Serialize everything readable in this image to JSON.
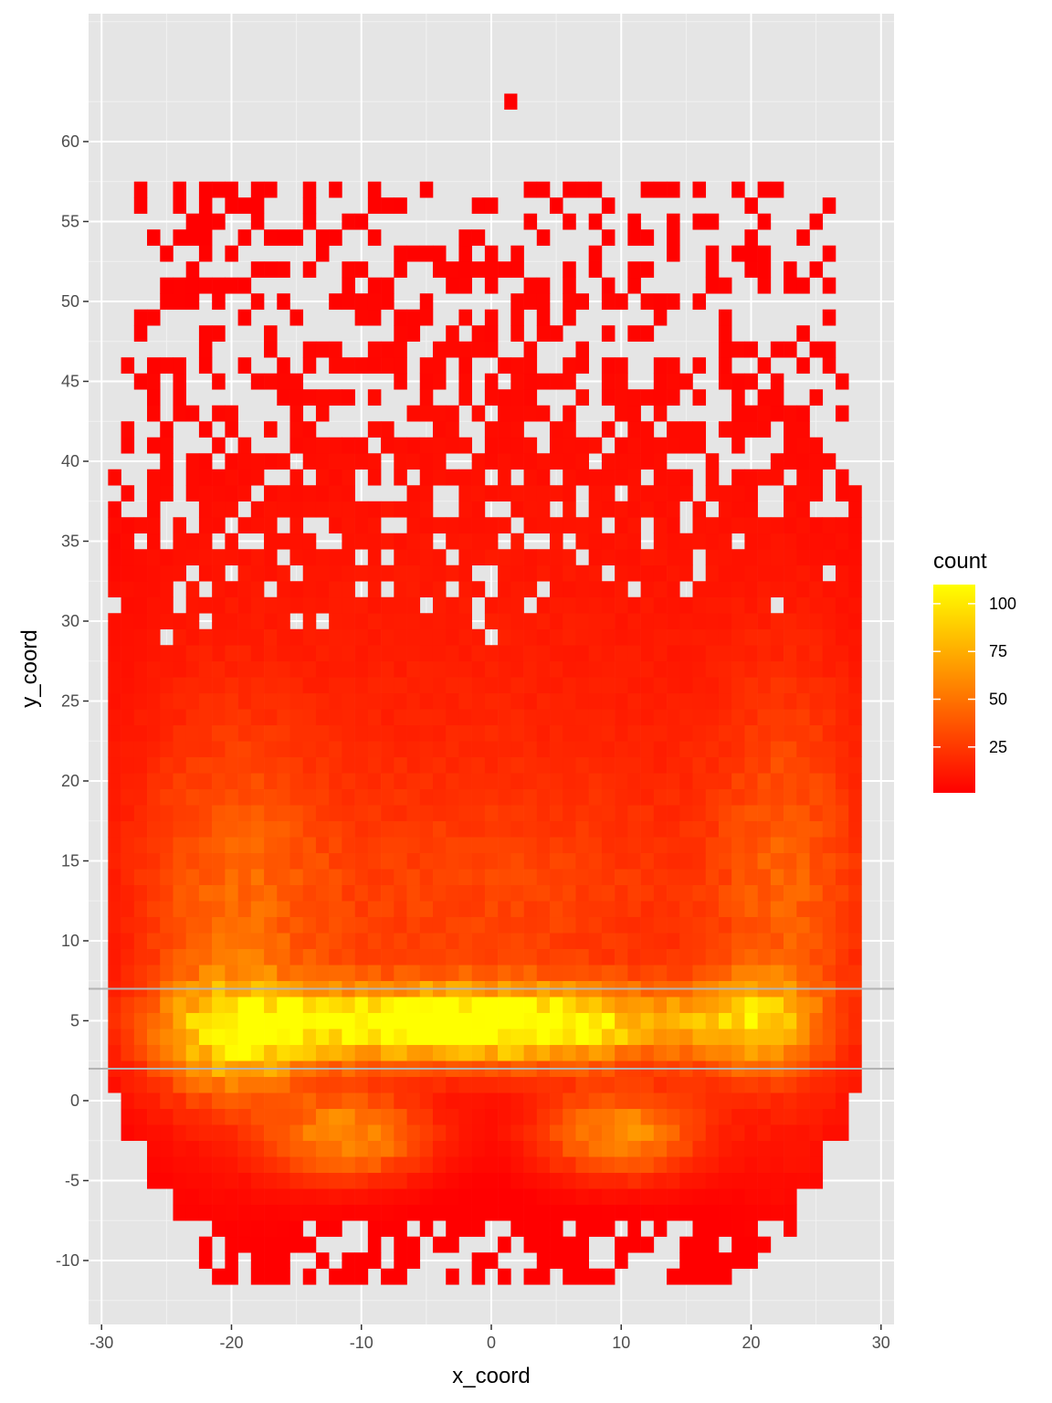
{
  "chart_data": {
    "type": "heatmap",
    "title": "",
    "xlabel": "x_coord",
    "ylabel": "y_coord",
    "xlim": [
      -31,
      31
    ],
    "ylim": [
      -14,
      68
    ],
    "x_ticks": [
      -30,
      -20,
      -10,
      0,
      10,
      20,
      30
    ],
    "y_ticks": [
      -10,
      -5,
      0,
      5,
      10,
      15,
      20,
      25,
      30,
      35,
      40,
      45,
      50,
      55,
      60
    ],
    "bin_width": 1,
    "grid": true,
    "background_color": "#e5e5e5",
    "gridline_color": "#ffffff",
    "hlines": [
      {
        "y": 7,
        "color": "#b3b3b3"
      },
      {
        "y": 2,
        "color": "#b3b3b3"
      }
    ],
    "fill_scale": {
      "low_color": "#ff0000",
      "high_color": "#ffff00",
      "min": 1,
      "max": 110
    },
    "legend": {
      "title": "count",
      "placement": "right",
      "breaks": [
        25,
        50,
        75,
        100
      ]
    },
    "density_description": "Counts concentrate in a band between y=2 and y=7 (peak ~110 near x=-10 and x=0..10), with secondary clusters near y=-2 around x=-10 and x=10; sparse counts (1-5) at y>30; a few isolated bins at y~62."
  }
}
